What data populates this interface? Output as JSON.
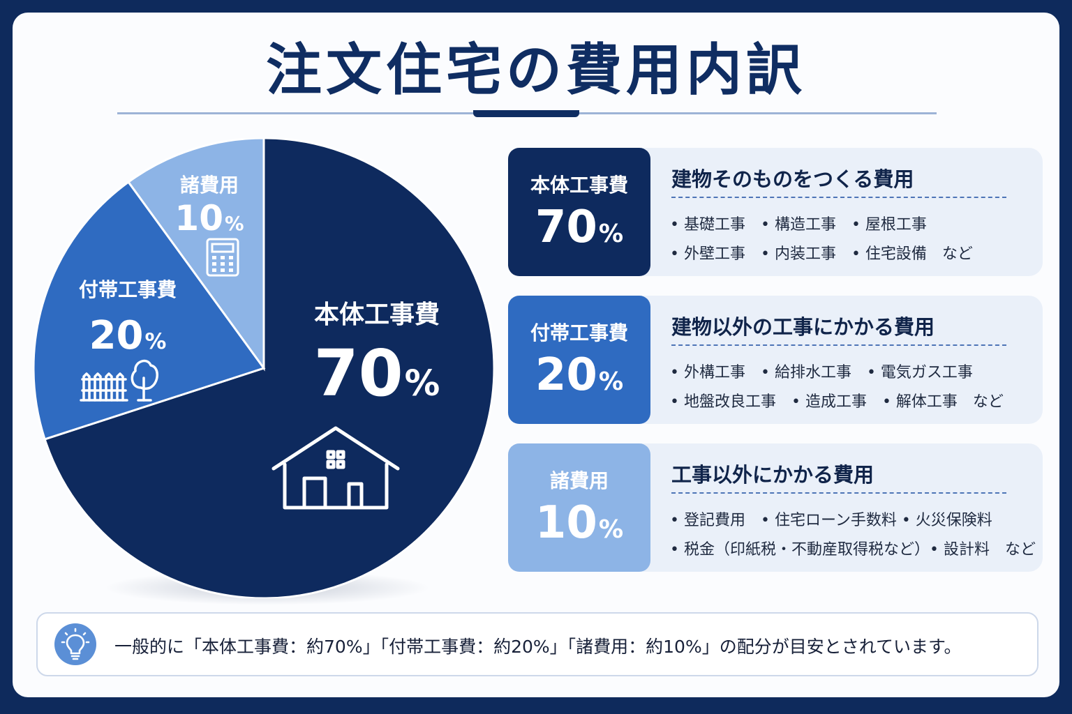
{
  "title": "注文住宅の費用内訳",
  "chart_data": {
    "type": "pie",
    "categories": [
      "本体工事費",
      "付帯工事費",
      "諸費用"
    ],
    "values": [
      70,
      20,
      10
    ],
    "unit": "%",
    "colors": [
      "#0e2a5e",
      "#2f6bc1",
      "#8db4e6"
    ],
    "title": "注文住宅の費用内訳"
  },
  "pie_labels": {
    "main": {
      "name": "本体工事費",
      "value": "70",
      "unit": "%",
      "icon": "house-icon"
    },
    "sub": {
      "name": "付帯工事費",
      "value": "20",
      "unit": "%",
      "icon": "fence-tree-icon"
    },
    "misc": {
      "name": "諸費用",
      "value": "10",
      "unit": "%",
      "icon": "calculator-icon"
    }
  },
  "rows": [
    {
      "name": "本体工事費",
      "value": "70",
      "unit": "%",
      "color": "#0e2a5e",
      "heading": "建物そのものをつくる費用",
      "line1": "• 基礎工事　• 構造工事　• 屋根工事",
      "line2": "• 外壁工事　• 内装工事　• 住宅設備　など"
    },
    {
      "name": "付帯工事費",
      "value": "20",
      "unit": "%",
      "color": "#2f6bc1",
      "heading": "建物以外の工事にかかる費用",
      "line1": "• 外構工事　• 給排水工事　• 電気ガス工事",
      "line2": "• 地盤改良工事　• 造成工事　• 解体工事　など"
    },
    {
      "name": "諸費用",
      "value": "10",
      "unit": "%",
      "color": "#8db4e6",
      "heading": "工事以外にかかる費用",
      "line1": "• 登記費用　• 住宅ローン手数料 • 火災保険料",
      "line2": "• 税金（印紙税・不動産取得税など）• 設計料　など"
    }
  ],
  "note": {
    "icon": "lightbulb-icon",
    "text": "一般的に「本体工事費：約70%」「付帯工事費：約20%」「諸費用：約10%」の配分が目安とされています。"
  }
}
